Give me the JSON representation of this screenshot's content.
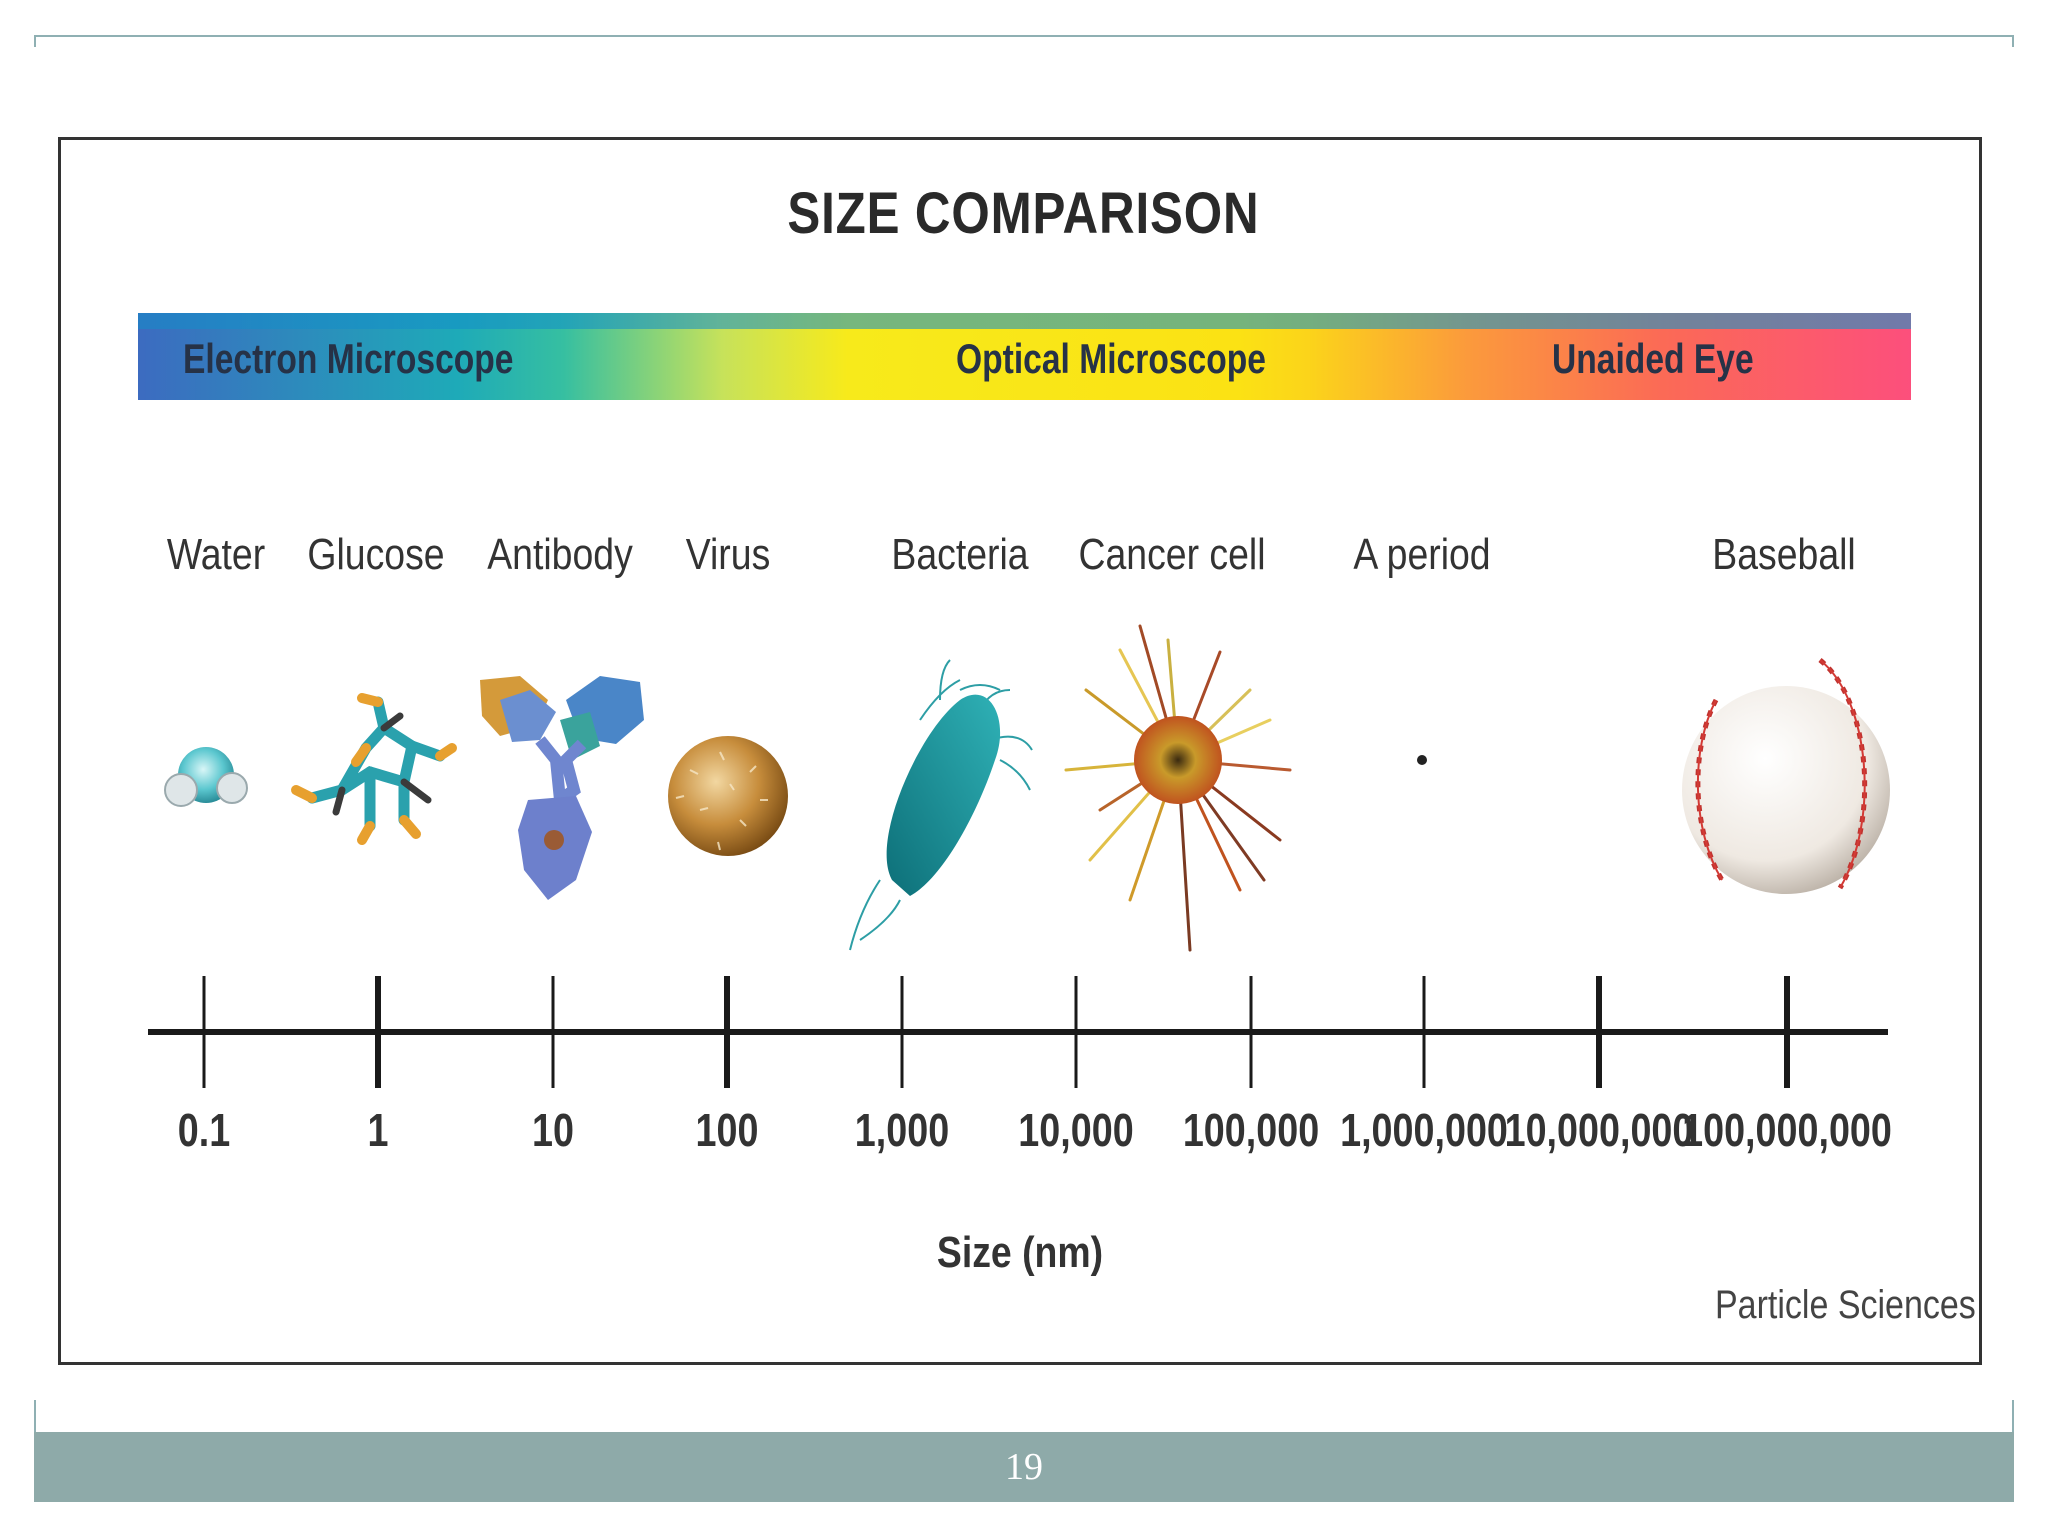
{
  "title": "SIZE COMPARISON",
  "spectrum": {
    "labels": [
      "Electron Microscope",
      "Optical Microscope",
      "Unaided Eye"
    ]
  },
  "items": [
    "Water",
    "Glucose",
    "Antibody",
    "Virus",
    "Bacteria",
    "Cancer cell",
    "A period",
    "Baseball"
  ],
  "axis": {
    "ticks": [
      "0.1",
      "1",
      "10",
      "100",
      "1,000",
      "10,000",
      "100,000",
      "1,000,000",
      "10,000,000",
      "100,000,000"
    ],
    "title": "Size (nm)",
    "scale": "log"
  },
  "credit": "Particle Sciences",
  "page_number": "19",
  "colors": {
    "footer_bar": "#8eaaa9",
    "frame_border": "#8fb0b3",
    "box_border": "#333333"
  },
  "icons": [
    "water-molecule-icon",
    "glucose-molecule-icon",
    "antibody-icon",
    "virus-icon",
    "bacteria-icon",
    "cancer-cell-icon",
    "period-dot-icon",
    "baseball-icon"
  ]
}
